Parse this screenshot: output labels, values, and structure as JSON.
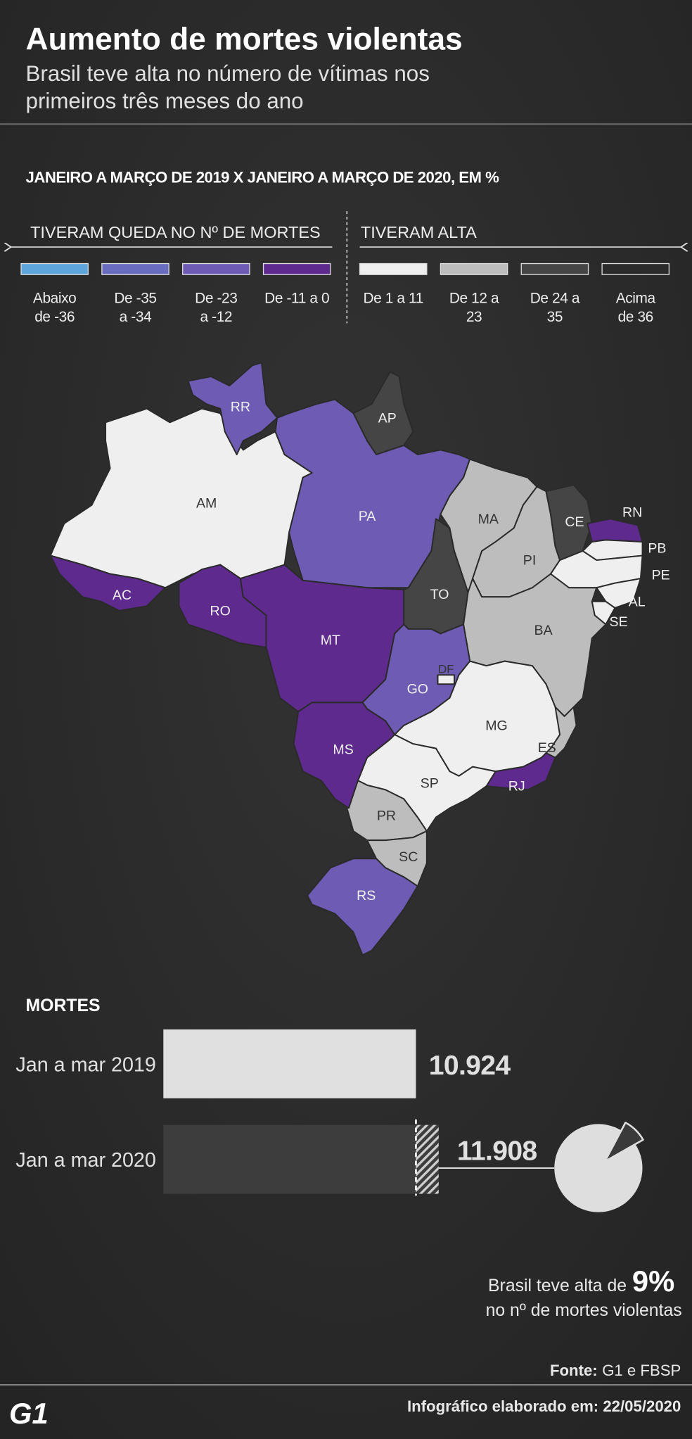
{
  "header": {
    "title": "Aumento de mortes violentas",
    "subtitle": [
      "Brasil teve alta no número de vítimas nos",
      "primeiros três meses do ano"
    ],
    "section_title": "JANEIRO A MARÇO DE 2019 X JANEIRO A MARÇO DE 2020, EM %"
  },
  "legend": {
    "groups": [
      {
        "title": "TIVERAM QUEDA NO Nº DE MORTES",
        "items": [
          {
            "label": [
              "Abaixo",
              "de -36"
            ],
            "color": "#5ea5dc"
          },
          {
            "label": [
              "De -35",
              "a -34"
            ],
            "color": "#6a6cc0"
          },
          {
            "label": [
              "De -23",
              "a -12"
            ],
            "color": "#6e5cb4"
          },
          {
            "label": [
              "De -11 a 0"
            ],
            "color": "#5e2a8e"
          }
        ]
      },
      {
        "title": "TIVERAM ALTA",
        "items": [
          {
            "label": [
              "De 1 a 11"
            ],
            "color": "#efefef"
          },
          {
            "label": [
              "De 12 a",
              "23"
            ],
            "color": "#bdbdbd"
          },
          {
            "label": [
              "De 24 a",
              "35"
            ],
            "color": "#454545"
          },
          {
            "label": [
              "Acima",
              "de 36"
            ],
            "color": "#2b2b2b"
          }
        ]
      }
    ]
  },
  "map": {
    "states": [
      {
        "label": "AM",
        "color": "#efefef"
      },
      {
        "label": "RR",
        "color": "#6e5cb4"
      },
      {
        "label": "AP",
        "color": "#454545"
      },
      {
        "label": "PA",
        "color": "#6e5cb4"
      },
      {
        "label": "AC",
        "color": "#5e2a8e"
      },
      {
        "label": "RO",
        "color": "#5e2a8e"
      },
      {
        "label": "MT",
        "color": "#5e2a8e"
      },
      {
        "label": "TO",
        "color": "#454545"
      },
      {
        "label": "MA",
        "color": "#bdbdbd"
      },
      {
        "label": "PI",
        "color": "#bdbdbd"
      },
      {
        "label": "CE",
        "color": "#454545"
      },
      {
        "label": "RN",
        "color": "#5e2a8e"
      },
      {
        "label": "PB",
        "color": "#efefef"
      },
      {
        "label": "PE",
        "color": "#efefef"
      },
      {
        "label": "AL",
        "color": "#efefef"
      },
      {
        "label": "SE",
        "color": "#efefef"
      },
      {
        "label": "BA",
        "color": "#bdbdbd"
      },
      {
        "label": "GO",
        "color": "#6e5cb4"
      },
      {
        "label": "DF",
        "color": "#efefef"
      },
      {
        "label": "MG",
        "color": "#efefef"
      },
      {
        "label": "ES",
        "color": "#bdbdbd"
      },
      {
        "label": "RJ",
        "color": "#5e2a8e"
      },
      {
        "label": "SP",
        "color": "#efefef"
      },
      {
        "label": "PR",
        "color": "#bdbdbd"
      },
      {
        "label": "SC",
        "color": "#bdbdbd"
      },
      {
        "label": "RS",
        "color": "#6e5cb4"
      },
      {
        "label": "MS",
        "color": "#5e2a8e"
      }
    ]
  },
  "chart_data": [
    {
      "type": "bar",
      "title": "MORTES",
      "categories": [
        "Jan a mar 2019",
        "Jan a mar 2020"
      ],
      "values": [
        10924,
        11908
      ],
      "value_labels": [
        "10.924",
        "11.908"
      ],
      "colors": [
        "#e0e0e0",
        "#3d3d3d"
      ]
    },
    {
      "type": "pie",
      "values": [
        9
      ],
      "value_labels": [
        "9%"
      ],
      "annotation": [
        "Brasil teve alta de",
        "no nº de mortes violentas"
      ],
      "color": "#3a3a3a"
    }
  ],
  "footer": {
    "source_label": "Fonte:",
    "source": "G1 e FBSP",
    "credit": "Infográfico elaborado em: 22/05/2020",
    "logo": "G1"
  }
}
